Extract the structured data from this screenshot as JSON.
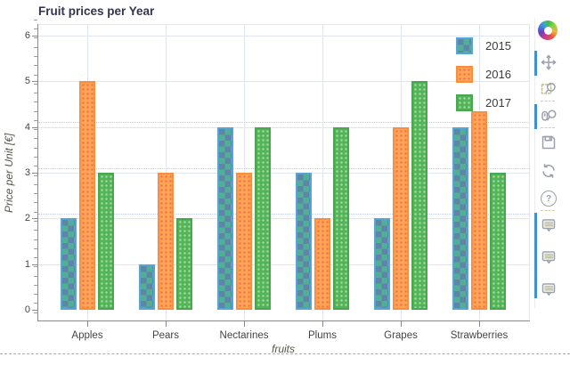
{
  "title": "Fruit prices per Year",
  "chart_data": {
    "type": "bar",
    "title": "Fruit prices per Year",
    "categories": [
      "Apples",
      "Pears",
      "Nectarines",
      "Plums",
      "Grapes",
      "Strawberries"
    ],
    "series": [
      {
        "name": "2015",
        "values": [
          2,
          1,
          4,
          3,
          2,
          4
        ],
        "fill": "#5d86a6",
        "hatch": "checker",
        "hatch_color": "#52ad99",
        "line": "#56a5d8"
      },
      {
        "name": "2016",
        "values": [
          5,
          3,
          3,
          2,
          4,
          4.35
        ],
        "fill": "#ffa455",
        "hatch": "dot",
        "hatch_color": "#ee744d",
        "line": "#fb8d3d"
      },
      {
        "name": "2017",
        "values": [
          3,
          2,
          4,
          4,
          5,
          3
        ],
        "fill": "#55b35e",
        "hatch": "dot",
        "hatch_color": "#a2dc90",
        "line": "#47a851"
      }
    ],
    "xlabel": "fruits",
    "ylabel": "Price per Unit [€]",
    "ylim": [
      -0.25,
      6.25
    ],
    "yticks": [
      0,
      1,
      2,
      3,
      4,
      5,
      6
    ],
    "grid": true,
    "grid_color": "#e0e4f3",
    "aux_dotted_lines_y": [
      2.1,
      3.1,
      4.1
    ],
    "legend_position": "top_right"
  },
  "legend": {
    "entries": [
      "2015",
      "2016",
      "2017"
    ]
  },
  "toolbar": {
    "logo": "bokeh-logo",
    "help_glyph": "?",
    "active_color": "#3e8ed8",
    "tools": [
      {
        "id": "pan",
        "label": "Pan",
        "active": true
      },
      {
        "id": "box-zoom",
        "label": "Box Zoom",
        "active": false
      },
      {
        "id": "wheel-zoom",
        "label": "Wheel Zoom",
        "active": true
      },
      {
        "id": "save",
        "label": "Save",
        "active": false
      },
      {
        "id": "reset",
        "label": "Reset",
        "active": false
      },
      {
        "id": "help",
        "label": "Help",
        "active": false
      },
      {
        "id": "hover-2015",
        "label": "Hover",
        "active": true
      },
      {
        "id": "hover-2016",
        "label": "Hover",
        "active": true
      },
      {
        "id": "hover-2017",
        "label": "Hover",
        "active": true
      }
    ]
  }
}
